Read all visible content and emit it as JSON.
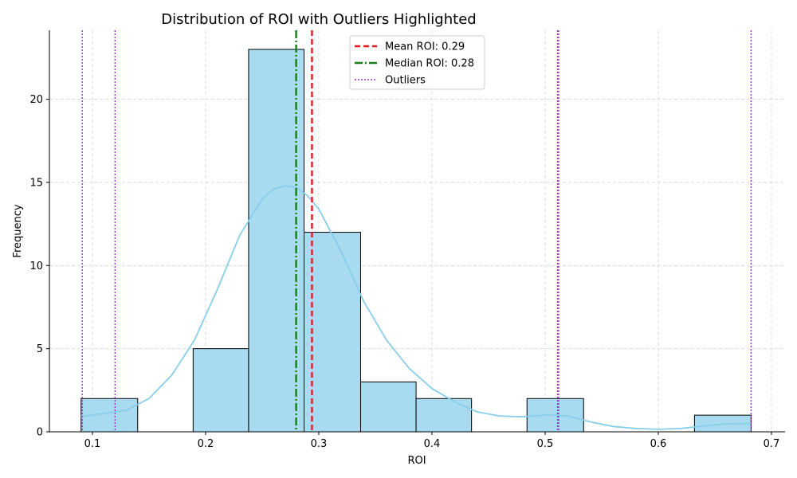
{
  "chart_data": {
    "type": "bar",
    "title": "Distribution of ROI with Outliers Highlighted",
    "xlabel": "ROI",
    "ylabel": "Frequency",
    "xlim": [
      0.062,
      0.712
    ],
    "ylim": [
      0,
      24.15
    ],
    "xticks": [
      "0.1",
      "0.2",
      "0.3",
      "0.4",
      "0.5",
      "0.6",
      "0.7"
    ],
    "yticks": [
      "0",
      "5",
      "10",
      "15",
      "20"
    ],
    "grid": true,
    "bins": [
      {
        "x0": 0.09,
        "x1": 0.14,
        "count": 2
      },
      {
        "x0": 0.14,
        "x1": 0.189,
        "count": 0
      },
      {
        "x0": 0.189,
        "x1": 0.238,
        "count": 5
      },
      {
        "x0": 0.238,
        "x1": 0.287,
        "count": 23
      },
      {
        "x0": 0.287,
        "x1": 0.337,
        "count": 12
      },
      {
        "x0": 0.337,
        "x1": 0.386,
        "count": 3
      },
      {
        "x0": 0.386,
        "x1": 0.435,
        "count": 2
      },
      {
        "x0": 0.435,
        "x1": 0.484,
        "count": 0
      },
      {
        "x0": 0.484,
        "x1": 0.534,
        "count": 2
      },
      {
        "x0": 0.534,
        "x1": 0.583,
        "count": 0
      },
      {
        "x0": 0.583,
        "x1": 0.632,
        "count": 0
      },
      {
        "x0": 0.632,
        "x1": 0.682,
        "count": 1
      }
    ],
    "kde": {
      "x": [
        0.09,
        0.11,
        0.13,
        0.15,
        0.17,
        0.19,
        0.21,
        0.23,
        0.25,
        0.26,
        0.27,
        0.28,
        0.29,
        0.3,
        0.32,
        0.34,
        0.36,
        0.38,
        0.4,
        0.42,
        0.44,
        0.46,
        0.48,
        0.5,
        0.51,
        0.52,
        0.54,
        0.56,
        0.58,
        0.6,
        0.62,
        0.64,
        0.66,
        0.682
      ],
      "y": [
        0.9,
        1.1,
        1.3,
        2.0,
        3.4,
        5.5,
        8.5,
        11.8,
        14.0,
        14.6,
        14.8,
        14.7,
        14.2,
        13.4,
        10.8,
        7.8,
        5.5,
        3.8,
        2.6,
        1.8,
        1.2,
        0.95,
        0.9,
        1.0,
        1.0,
        0.95,
        0.6,
        0.32,
        0.2,
        0.15,
        0.2,
        0.35,
        0.48,
        0.5
      ]
    },
    "lines": [
      {
        "kind": "mean",
        "x": 0.294,
        "color": "#e41a1c",
        "style": "dashed"
      },
      {
        "kind": "median",
        "x": 0.28,
        "color": "#148014",
        "style": "dashdot"
      },
      {
        "kind": "outlier",
        "x": 0.091,
        "color": "#9932cc",
        "style": "dotted"
      },
      {
        "kind": "outlier",
        "x": 0.12,
        "color": "#9932cc",
        "style": "dotted"
      },
      {
        "kind": "outlier",
        "x": 0.511,
        "color": "#9932cc",
        "style": "dotted"
      },
      {
        "kind": "outlier",
        "x": 0.512,
        "color": "#9932cc",
        "style": "dotted"
      },
      {
        "kind": "outlier",
        "x": 0.682,
        "color": "#9932cc",
        "style": "dotted"
      }
    ],
    "legend": {
      "position": "top-center",
      "entries": [
        {
          "label": "Mean ROI: 0.29",
          "color": "#e41a1c",
          "style": "dashed"
        },
        {
          "label": "Median ROI: 0.28",
          "color": "#148014",
          "style": "dashdot"
        },
        {
          "label": "Outliers",
          "color": "#9932cc",
          "style": "dotted"
        }
      ]
    },
    "colors": {
      "bar_fill": "#a8dbef",
      "bar_edge": "#000000",
      "kde_line": "#87ceeb",
      "grid": "#d3d3d3"
    }
  }
}
